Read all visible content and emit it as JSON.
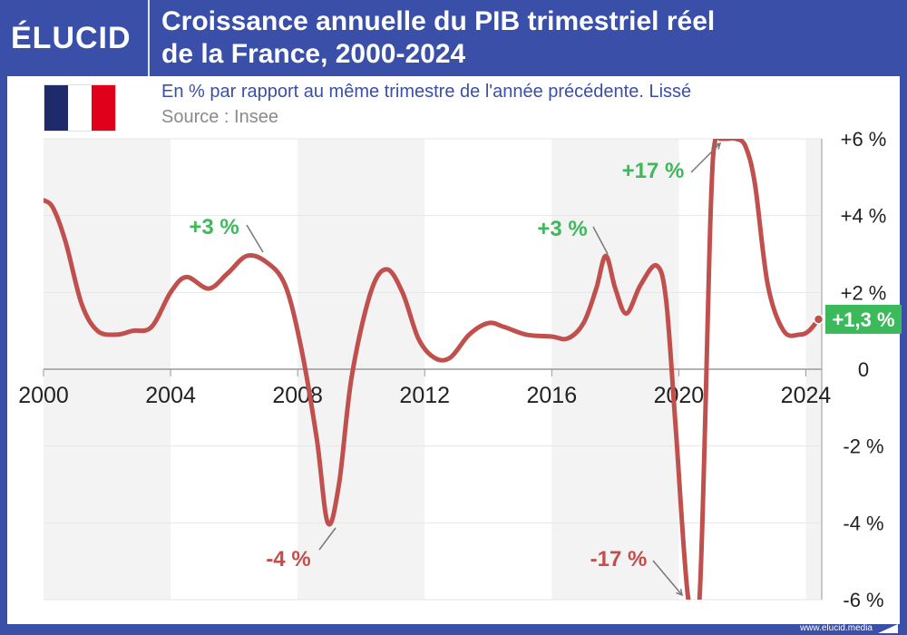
{
  "brand": {
    "logo": "ÉLUCID",
    "footer": "www.elucid.media"
  },
  "header": {
    "title_line1": "Croissance annuelle du PIB trimestriel réel",
    "title_line2": "de la France, 2000-2024",
    "subtitle": "En % par rapport au même trimestre de l'année précédente. Lissé",
    "source": "Source : Insee"
  },
  "colors": {
    "header_bg": "#3a4fa8",
    "line": "#c0504d",
    "positive": "#3cb95a",
    "negative": "#c0504d",
    "band": "#f3f3f3",
    "flag": [
      "#1f2a6b",
      "#ffffff",
      "#e0001a"
    ]
  },
  "chart_data": {
    "type": "line",
    "title": "Croissance annuelle du PIB trimestriel réel de la France, 2000-2024",
    "subtitle": "En % par rapport au même trimestre de l'année précédente. Lissé",
    "xlabel": "",
    "ylabel": "",
    "xlim": [
      2000,
      2024.5
    ],
    "ylim": [
      -6,
      6
    ],
    "x_ticks": [
      2000,
      2004,
      2008,
      2012,
      2016,
      2020,
      2024
    ],
    "x_tick_labels": [
      "2000",
      "2004",
      "2008",
      "2012",
      "2016",
      "2020",
      "2024"
    ],
    "y_ticks": [
      6,
      4,
      2,
      0,
      -2,
      -4,
      -6
    ],
    "y_tick_labels": [
      "+6 %",
      "+4 %",
      "+2 %",
      "0",
      "-2 %",
      "-4 %",
      "-6 %"
    ],
    "grid": true,
    "y_axis_side": "right",
    "series": [
      {
        "name": "",
        "x": [
          2000,
          2000.3,
          2000.7,
          2001.2,
          2001.7,
          2002.3,
          2002.8,
          2003.4,
          2004.0,
          2004.5,
          2005.2,
          2005.8,
          2006.4,
          2007.0,
          2007.6,
          2008.1,
          2008.6,
          2008.95,
          2009.3,
          2009.7,
          2010.3,
          2010.8,
          2011.3,
          2011.8,
          2012.3,
          2012.8,
          2013.4,
          2014.0,
          2014.5,
          2015.2,
          2016.0,
          2016.5,
          2017.0,
          2017.4,
          2017.7,
          2018.0,
          2018.35,
          2018.8,
          2019.3,
          2019.6,
          2019.9,
          2020.3,
          2020.65,
          2021.0,
          2021.15,
          2021.3,
          2021.5,
          2021.8,
          2022.1,
          2022.4,
          2022.8,
          2023.3,
          2023.8,
          2024.1,
          2024.4
        ],
        "y": [
          4.4,
          4.2,
          3.3,
          1.7,
          1.0,
          0.9,
          1.0,
          1.1,
          2.0,
          2.4,
          2.1,
          2.5,
          2.95,
          2.8,
          2.2,
          0.6,
          -1.8,
          -4.0,
          -3.0,
          -0.2,
          2.0,
          2.6,
          2.0,
          0.8,
          0.3,
          0.3,
          0.9,
          1.2,
          1.1,
          0.9,
          0.85,
          0.8,
          1.2,
          2.1,
          2.95,
          2.1,
          1.45,
          2.2,
          2.7,
          1.8,
          -1.5,
          -6.0,
          -6.0,
          4.0,
          6.0,
          6.0,
          6.0,
          6.0,
          5.8,
          4.8,
          2.2,
          1.0,
          0.9,
          1.0,
          1.3
        ]
      }
    ],
    "annotations": [
      {
        "text": "+3 %",
        "x": 2006.5,
        "y": 3.0,
        "tone": "positive"
      },
      {
        "text": "-4 %",
        "x": 2008.95,
        "y": -4.0,
        "tone": "negative"
      },
      {
        "text": "+3 %",
        "x": 2017.5,
        "y": 3.0,
        "tone": "positive"
      },
      {
        "text": "+17 %",
        "x": 2021.3,
        "y": 17,
        "tone": "positive"
      },
      {
        "text": "-17 %",
        "x": 2020.3,
        "y": -17,
        "tone": "negative"
      }
    ],
    "last_value_label": "+1,3 %"
  }
}
